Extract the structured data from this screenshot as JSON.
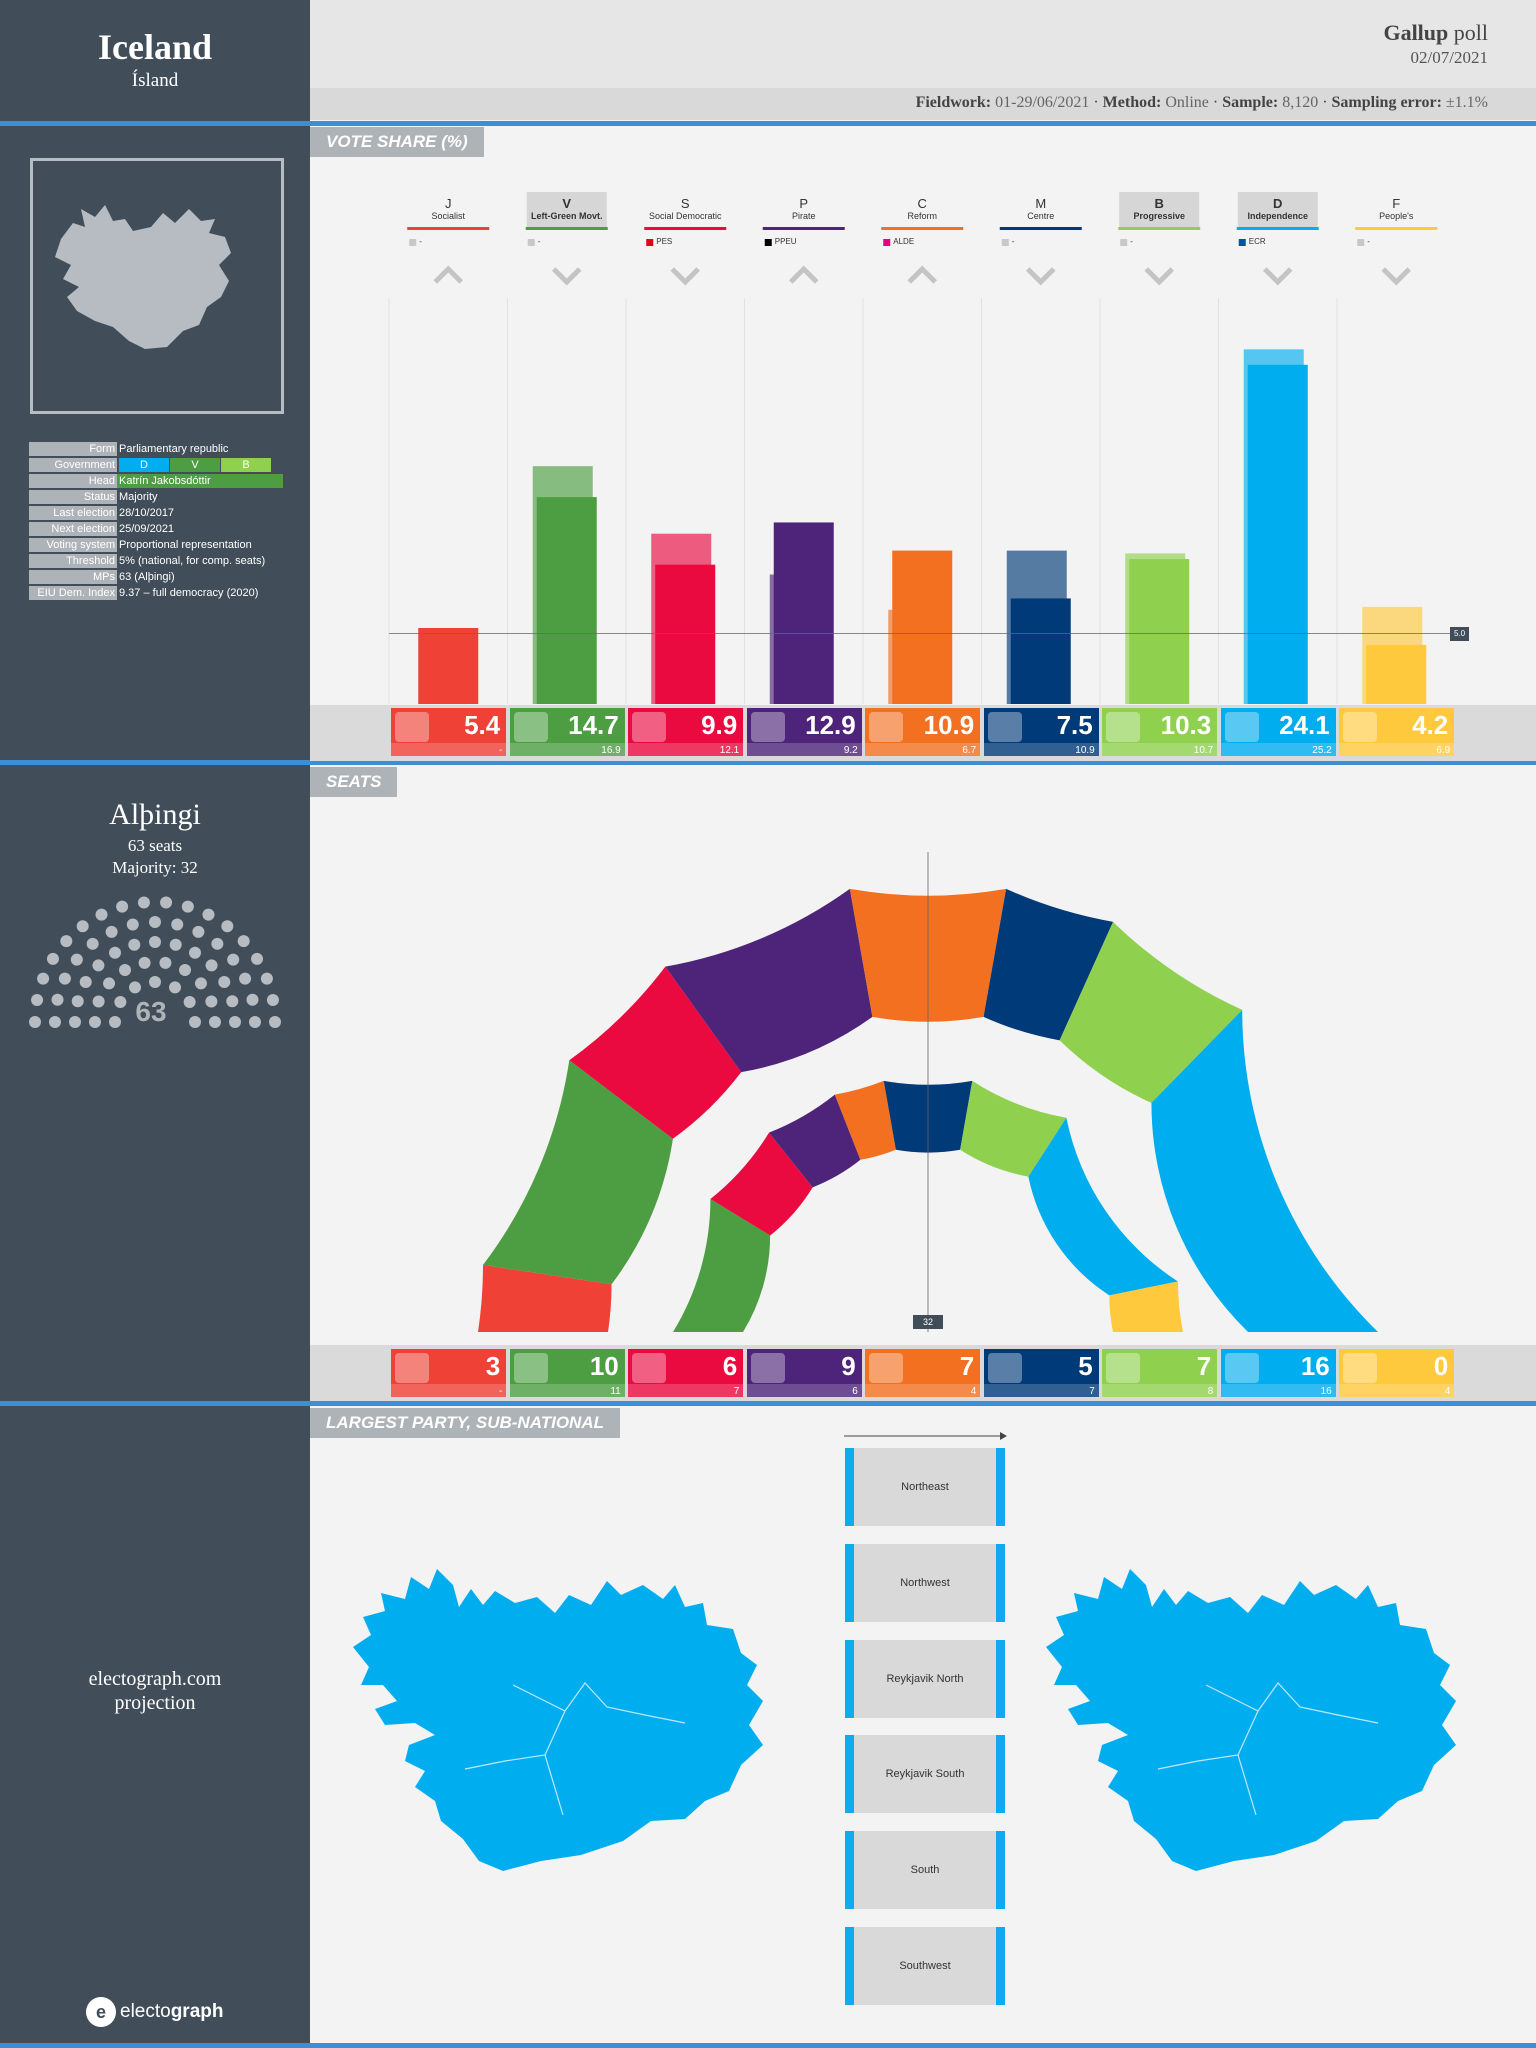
{
  "header": {
    "country": "Iceland",
    "country_native": "Ísland",
    "pollster": "Gallup",
    "poll_word": "poll",
    "date": "02/07/2021"
  },
  "fieldwork": {
    "fieldwork_label": "Fieldwork:",
    "fieldwork": "01-29/06/2021",
    "method_label": "Method:",
    "method": "Online",
    "sample_label": "Sample:",
    "sample": "8,120",
    "error_label": "Sampling error:",
    "error": "±1.1%"
  },
  "info": {
    "rows": [
      {
        "k": "Form",
        "v": "Parliamentary republic"
      },
      {
        "k": "Government",
        "v": ""
      },
      {
        "k": "Head",
        "v": "Katrín Jakobsdóttir"
      },
      {
        "k": "Status",
        "v": "Majority"
      },
      {
        "k": "Last election",
        "v": "28/10/2017"
      },
      {
        "k": "Next election",
        "v": "25/09/2021"
      },
      {
        "k": "Voting system",
        "v": "Proportional representation"
      },
      {
        "k": "Threshold",
        "v": "5% (national, for comp. seats)"
      },
      {
        "k": "MPs",
        "v": "63 (Alþingi)"
      },
      {
        "k": "EIU Dem. Index",
        "v": "9.37 – full democracy (2020)"
      }
    ],
    "government": [
      "D",
      "V",
      "B"
    ]
  },
  "sections": {
    "vote_share": "VOTE SHARE (%)",
    "seats": "SEATS",
    "largest": "LARGEST PARTY, SUB-NATIONAL"
  },
  "parliament": {
    "name": "Alþingi",
    "seats_label": "63 seats",
    "majority_label": "Majority: 32",
    "total": "63",
    "majority_marker": "32"
  },
  "footer": {
    "projection_line1": "electograph.com",
    "projection_line2": "projection",
    "brand_plain": "electo",
    "brand_bold": "graph"
  },
  "chart_data": {
    "type": "bar",
    "title": "VOTE SHARE (%)",
    "threshold": 5.0,
    "threshold_label": "5.0",
    "categories": [
      "J",
      "V",
      "S",
      "P",
      "C",
      "M",
      "B",
      "D",
      "F"
    ],
    "series": [
      {
        "name": "Poll",
        "values": [
          5.4,
          14.7,
          9.9,
          12.9,
          10.9,
          7.5,
          10.3,
          24.1,
          4.2
        ]
      },
      {
        "name": "Previous",
        "values": [
          null,
          16.9,
          12.1,
          9.2,
          6.7,
          10.9,
          10.7,
          25.2,
          6.9
        ]
      }
    ],
    "prev_labels": [
      "-",
      "16.9",
      "12.1",
      "9.2",
      "6.7",
      "10.9",
      "10.7",
      "25.2",
      "6.9"
    ],
    "seats": [
      3,
      10,
      6,
      9,
      7,
      5,
      7,
      16,
      0
    ],
    "prev_seats": [
      "-",
      "11",
      "7",
      "6",
      "4",
      "7",
      "8",
      "16",
      "4"
    ],
    "prev_seats_num": [
      0,
      11,
      7,
      6,
      4,
      7,
      8,
      16,
      4
    ],
    "trend": [
      "up",
      "down",
      "down",
      "up",
      "up",
      "down",
      "down",
      "down",
      "down"
    ],
    "ylim": [
      0,
      27
    ]
  },
  "parties": [
    {
      "abbr": "J",
      "name": "Socialist",
      "group": "-",
      "color": "#ef4136",
      "group_color": "#c8c8c8",
      "gov": false
    },
    {
      "abbr": "V",
      "name": "Left-Green Movt.",
      "group": "-",
      "color": "#4d9e42",
      "group_color": "#c8c8c8",
      "gov": true
    },
    {
      "abbr": "S",
      "name": "Social Democratic",
      "group": "PES",
      "color": "#ea0a3f",
      "group_color": "#e3001b",
      "gov": false
    },
    {
      "abbr": "P",
      "name": "Pirate",
      "group": "PPEU",
      "color": "#4e247a",
      "group_color": "#000000",
      "gov": false
    },
    {
      "abbr": "C",
      "name": "Reform",
      "group": "ALDE",
      "color": "#f37021",
      "group_color": "#e6007e",
      "gov": false
    },
    {
      "abbr": "M",
      "name": "Centre",
      "group": "-",
      "color": "#003a78",
      "group_color": "#c8c8c8",
      "gov": false
    },
    {
      "abbr": "B",
      "name": "Progressive",
      "group": "-",
      "color": "#8fd14f",
      "group_color": "#c8c8c8",
      "gov": true
    },
    {
      "abbr": "D",
      "name": "Independence",
      "group": "ECR",
      "color": "#00adef",
      "group_color": "#0054a5",
      "gov": true
    },
    {
      "abbr": "F",
      "name": "People's",
      "group": "-",
      "color": "#ffc93d",
      "group_color": "#c8c8c8",
      "gov": false
    }
  ],
  "regions": [
    "Northeast",
    "Northwest",
    "Reykjavik North",
    "Reykjavik South",
    "South",
    "Southwest"
  ]
}
